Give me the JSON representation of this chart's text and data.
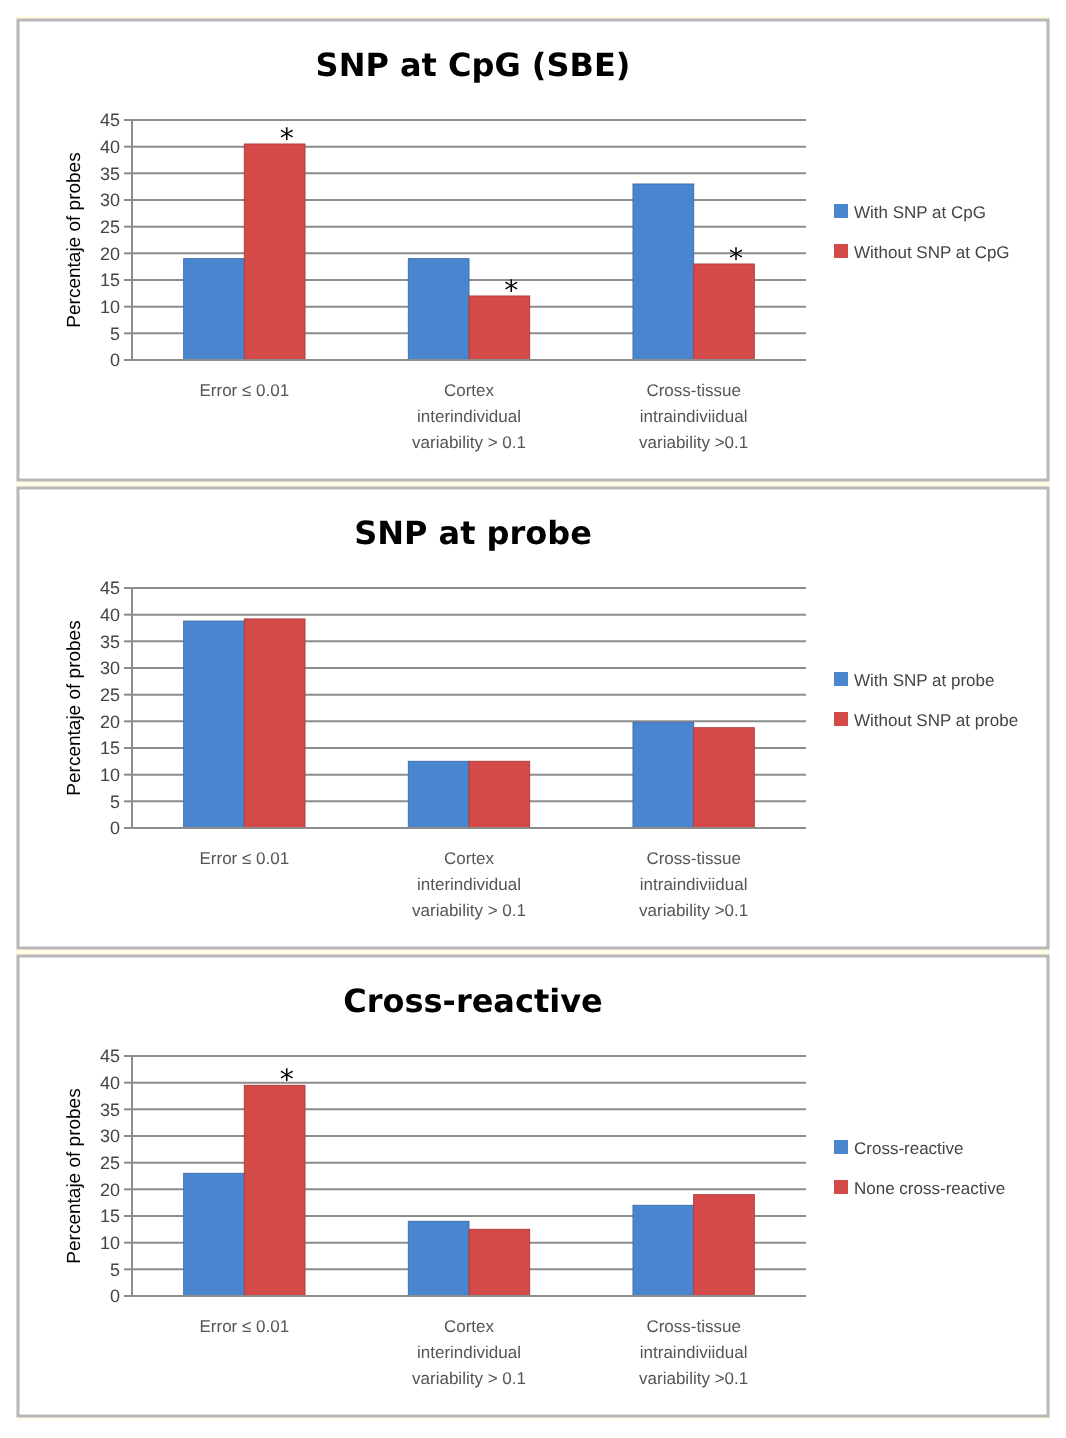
{
  "chart_data": [
    {
      "type": "bar",
      "title": "SNP at CpG (SBE)",
      "ylabel": "Percentaje of probes",
      "categories": [
        "Error ≤ 0.01",
        "Cortex interindividual variability > 0.1",
        "Cross-tissue intraindiviidual variability >0.1"
      ],
      "series": [
        {
          "name": "With SNP at CpG",
          "color": "#4a86d0",
          "values": [
            19,
            19,
            33
          ]
        },
        {
          "name": "Without  SNP at CpG",
          "color": "#d44a48",
          "values": [
            40.5,
            12,
            18
          ]
        }
      ],
      "ylim": [
        0,
        45
      ],
      "yticks": [
        0,
        5,
        10,
        15,
        20,
        25,
        30,
        35,
        40,
        45
      ],
      "grid": "y",
      "legend": "right",
      "annotations": [
        {
          "text": "*",
          "x": "Error ≤ 0.01",
          "y": 40.5
        },
        {
          "text": "*",
          "x": "Cortex interindividual variability > 0.1",
          "y": 12
        },
        {
          "text": "*",
          "x": "Cross-tissue intraindiviidual variability >0.1",
          "y": 18
        }
      ]
    },
    {
      "type": "bar",
      "title": "SNP at probe",
      "ylabel": "Percentaje of probes",
      "categories": [
        "Error ≤ 0.01",
        "Cortex interindividual variability > 0.1",
        "Cross-tissue intraindiviidual variability >0.1"
      ],
      "series": [
        {
          "name": "With SNP at probe",
          "color": "#4a86d0",
          "values": [
            38.8,
            12.5,
            19.8
          ]
        },
        {
          "name": "Without  SNP at probe",
          "color": "#d44a48",
          "values": [
            39.2,
            12.5,
            18.8
          ]
        }
      ],
      "ylim": [
        0,
        45
      ],
      "yticks": [
        0,
        5,
        10,
        15,
        20,
        25,
        30,
        35,
        40,
        45
      ],
      "grid": "y",
      "legend": "right"
    },
    {
      "type": "bar",
      "title": "Cross-reactive",
      "ylabel": "Percentaje of probes",
      "categories": [
        "Error ≤ 0.01",
        "Cortex interindividual variability > 0.1",
        "Cross-tissue intraindiviidual variability >0.1"
      ],
      "series": [
        {
          "name": "Cross-reactive",
          "color": "#4a86d0",
          "values": [
            23,
            14,
            17
          ]
        },
        {
          "name": "None cross-reactive",
          "color": "#d44a48",
          "values": [
            39.5,
            12.5,
            19
          ]
        }
      ],
      "ylim": [
        0,
        45
      ],
      "yticks": [
        0,
        5,
        10,
        15,
        20,
        25,
        30,
        35,
        40,
        45
      ],
      "grid": "y",
      "legend": "right",
      "annotations": [
        {
          "text": "*",
          "x": "Error ≤ 0.01",
          "y": 39.5
        }
      ]
    }
  ]
}
